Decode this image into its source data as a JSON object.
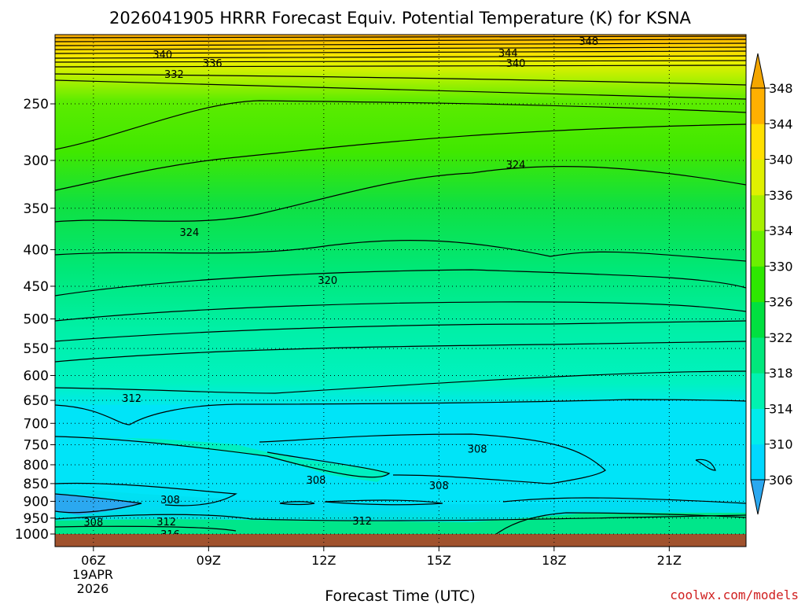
{
  "chart_data": {
    "type": "heatmap",
    "title": "2026041905 HRRR Forecast Equiv. Potential Temperature (K) for KSNA",
    "xlabel": "Forecast Time (UTC)",
    "ylabel": "",
    "x_ticks": [
      "06Z",
      "09Z",
      "12Z",
      "15Z",
      "18Z",
      "21Z"
    ],
    "x_date_line1": "19APR",
    "x_date_line2": "2026",
    "x_range_hours": [
      5,
      23
    ],
    "y_ticks": [
      250,
      300,
      350,
      400,
      450,
      500,
      550,
      600,
      650,
      700,
      750,
      800,
      850,
      900,
      950,
      1000
    ],
    "y_range_hPa": [
      1000,
      200
    ],
    "y_scale": "log-pressure (inverted)",
    "colorbar": {
      "levels": [
        306,
        310,
        314,
        318,
        322,
        326,
        330,
        334,
        336,
        340,
        344,
        348
      ],
      "colors": [
        "#2ba8f0",
        "#00d8ff",
        "#00ecec",
        "#00f2b0",
        "#00e87c",
        "#00e040",
        "#2ee800",
        "#6cf000",
        "#a8f000",
        "#e0f000",
        "#ffe000",
        "#ffb000",
        "#f4a600"
      ],
      "position": "right"
    },
    "contour_labels": [
      {
        "value": "348",
        "hour": 18.9,
        "hPa": 204
      },
      {
        "value": "344",
        "hour": 16.8,
        "hPa": 212
      },
      {
        "value": "340",
        "hour": 7.8,
        "hPa": 213
      },
      {
        "value": "340",
        "hour": 17.0,
        "hPa": 219
      },
      {
        "value": "336",
        "hour": 9.1,
        "hPa": 219
      },
      {
        "value": "332",
        "hour": 8.1,
        "hPa": 227
      },
      {
        "value": "324",
        "hour": 17.0,
        "hPa": 304
      },
      {
        "value": "324",
        "hour": 8.5,
        "hPa": 378
      },
      {
        "value": "320",
        "hour": 12.1,
        "hPa": 441
      },
      {
        "value": "312",
        "hour": 7.0,
        "hPa": 645
      },
      {
        "value": "308",
        "hour": 16.0,
        "hPa": 760
      },
      {
        "value": "308",
        "hour": 11.8,
        "hPa": 840
      },
      {
        "value": "308",
        "hour": 15.0,
        "hPa": 855
      },
      {
        "value": "308",
        "hour": 8.0,
        "hPa": 895
      },
      {
        "value": "308",
        "hour": 6.0,
        "hPa": 962
      },
      {
        "value": "312",
        "hour": 7.9,
        "hPa": 960
      },
      {
        "value": "312",
        "hour": 13.0,
        "hPa": 958
      },
      {
        "value": "316",
        "hour": 8.0,
        "hPa": 1000
      }
    ],
    "terrain_color": "#a0522d"
  },
  "credit": "coolwx.com/models"
}
